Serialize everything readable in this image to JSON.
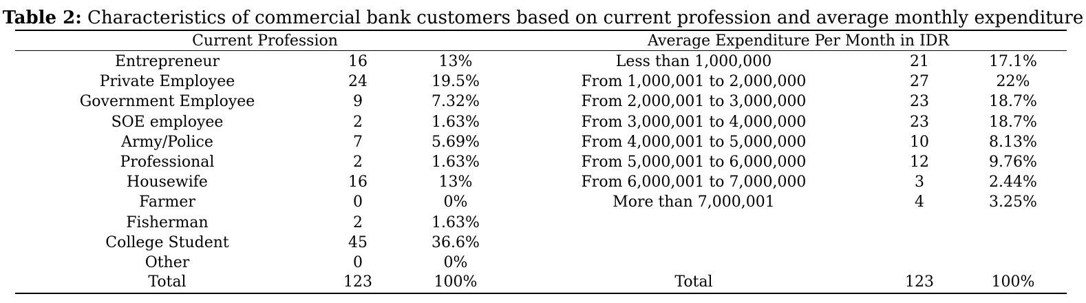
{
  "caption": {
    "label": "Table 2:",
    "text": " Characteristics of commercial bank customers based on current profession and average monthly expenditure"
  },
  "headers": {
    "left": "Current Profession",
    "right": "Average Expenditure Per Month in IDR"
  },
  "profession_rows": [
    {
      "label": "Entrepreneur",
      "count": "16",
      "percent": "13%"
    },
    {
      "label": "Private Employee",
      "count": "24",
      "percent": "19.5%"
    },
    {
      "label": "Government Employee",
      "count": "9",
      "percent": "7.32%"
    },
    {
      "label": "SOE employee",
      "count": "2",
      "percent": "1.63%"
    },
    {
      "label": "Army/Police",
      "count": "7",
      "percent": "5.69%"
    },
    {
      "label": "Professional",
      "count": "2",
      "percent": "1.63%"
    },
    {
      "label": "Housewife",
      "count": "16",
      "percent": "13%"
    },
    {
      "label": "Farmer",
      "count": "0",
      "percent": "0%"
    },
    {
      "label": "Fisherman",
      "count": "2",
      "percent": "1.63%"
    },
    {
      "label": "College Student",
      "count": "45",
      "percent": "36.6%"
    },
    {
      "label": "Other",
      "count": "0",
      "percent": "0%"
    }
  ],
  "profession_total": {
    "label": "Total",
    "count": "123",
    "percent": "100%"
  },
  "expenditure_rows": [
    {
      "label": "Less than 1,000,000",
      "count": "21",
      "percent": "17.1%"
    },
    {
      "label": "From 1,000,001 to 2,000,000",
      "count": "27",
      "percent": "22%"
    },
    {
      "label": "From 2,000,001 to 3,000,000",
      "count": "23",
      "percent": "18.7%"
    },
    {
      "label": "From 3,000,001 to 4,000,000",
      "count": "23",
      "percent": "18.7%"
    },
    {
      "label": "From 4,000,001 to 5,000,000",
      "count": "10",
      "percent": "8.13%"
    },
    {
      "label": "From 5,000,001 to 6,000,000",
      "count": "12",
      "percent": "9.76%"
    },
    {
      "label": "From 6,000,001 to 7,000,000",
      "count": "3",
      "percent": "2.44%"
    },
    {
      "label": "More than 7,000,001",
      "count": "4",
      "percent": "3.25%"
    }
  ],
  "expenditure_total": {
    "label": "Total",
    "count": "123",
    "percent": "100%"
  }
}
